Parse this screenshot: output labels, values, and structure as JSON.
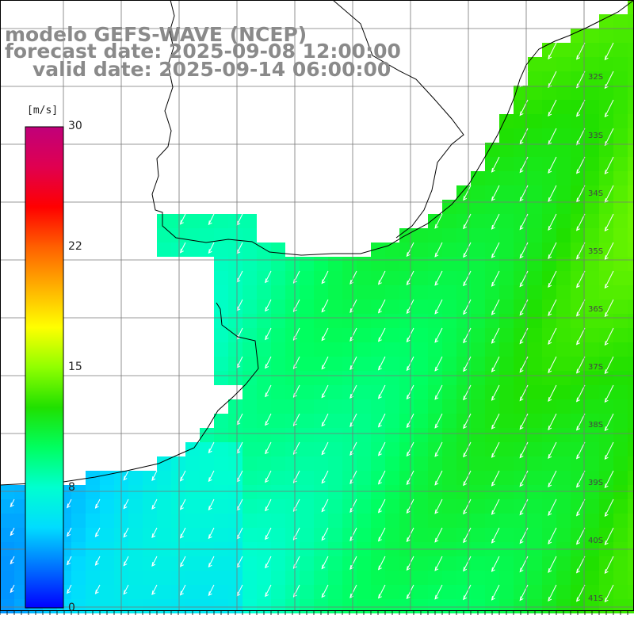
{
  "titles": {
    "model": "modelo GEFS-WAVE (NCEP)",
    "forecast": "forecast date: 2025-09-08 12:00:00",
    "valid": "valid date: 2025-09-14 06:00:00"
  },
  "colorbar": {
    "unit": "[m/s]",
    "ticks": [
      "30",
      "22",
      "15",
      "8",
      "0"
    ],
    "tick_values": [
      30,
      22,
      15,
      8,
      0
    ],
    "min": 0,
    "max": 30,
    "colors": [
      "#0000ff",
      "#0070ff",
      "#00dcff",
      "#00ffd0",
      "#00ff60",
      "#20e000",
      "#90ff00",
      "#ffff00",
      "#ffb000",
      "#ff6000",
      "#ff0000",
      "#e00050",
      "#c0007a"
    ]
  },
  "map": {
    "land_color": "#ffffff",
    "grid_color": "#777777",
    "arrow_color": "#ffffff",
    "wind_direction": "NE to SW",
    "lat_labels": [
      "32S",
      "33S",
      "34S",
      "35S",
      "36S",
      "37S",
      "38S",
      "39S",
      "40S",
      "41S"
    ]
  }
}
